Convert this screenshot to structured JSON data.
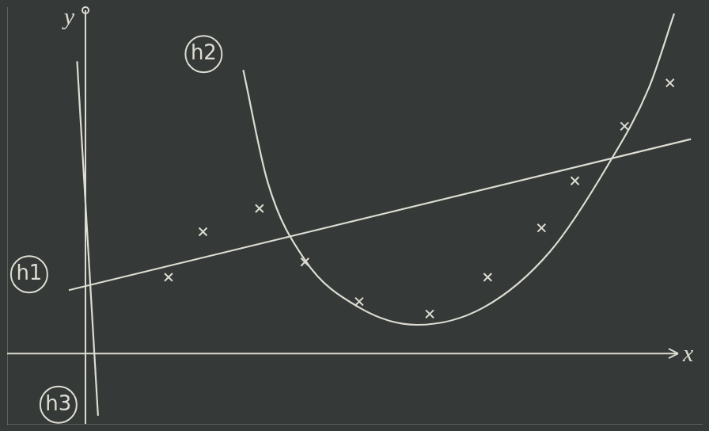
{
  "chart_data": {
    "type": "scatter",
    "x_label": "x",
    "y_label": "y",
    "xlim": [
      -1.5,
      11.8
    ],
    "ylim": [
      -1.3,
      6.4
    ],
    "grid": false,
    "tick_labels": false,
    "series": [
      {
        "type": "scatter",
        "marker": "x",
        "color": "#dcdcd2",
        "x": [
          1.59,
          2.25,
          3.33,
          4.2,
          5.24,
          6.59,
          7.7,
          8.73,
          9.37,
          10.32,
          11.19
        ],
        "y": [
          1.41,
          2.25,
          2.68,
          1.69,
          0.96,
          0.73,
          1.41,
          2.32,
          3.19,
          4.2,
          5.0
        ]
      },
      {
        "name": "h1",
        "type": "line",
        "line_style": "solid",
        "color": "#dcdcd2",
        "x": [
          -0.32,
          11.59
        ],
        "y": [
          1.17,
          3.96
        ]
      },
      {
        "name": "h2",
        "type": "line",
        "line_style": "solid",
        "color": "#dcdcd2",
        "x": [
          3.02,
          3.49,
          4.2,
          5.24,
          6.35,
          7.62,
          8.89,
          10.0,
          10.79,
          11.27
        ],
        "y": [
          5.24,
          3.16,
          1.73,
          0.85,
          0.53,
          0.85,
          1.88,
          3.48,
          4.92,
          6.28
        ]
      },
      {
        "name": "h3",
        "type": "line",
        "line_style": "solid",
        "color": "#dcdcd2",
        "x": [
          -0.16,
          0.24
        ],
        "y": [
          5.4,
          -1.15
        ]
      }
    ]
  }
}
